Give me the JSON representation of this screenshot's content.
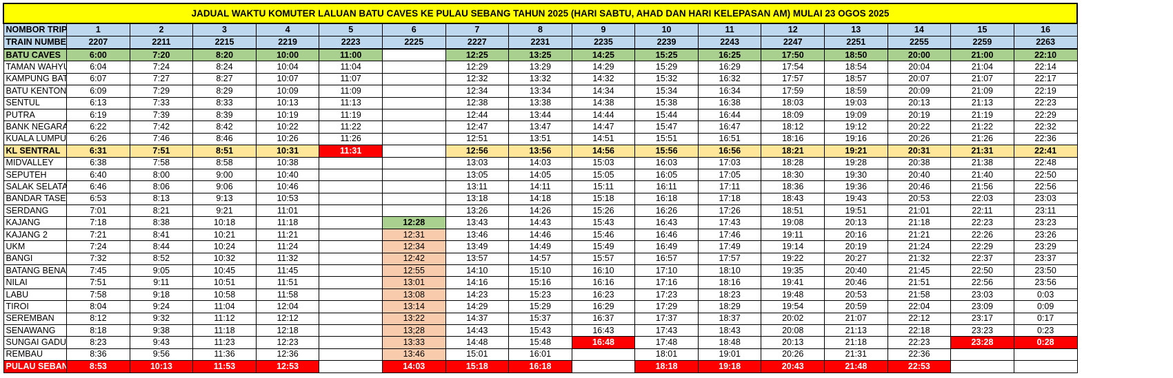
{
  "title": "JADUAL WAKTU KOMUTER LALUAN BATU CAVES KE PULAU SEBANG TAHUN 2025 (HARI SABTU, AHAD DAN HARI KELEPASAN AM) MULAI 23 OGOS 2025",
  "header": {
    "trip_label": "NOMBOR TRIP",
    "train_label": "TRAIN NUMBER",
    "trips": [
      "1",
      "2",
      "3",
      "4",
      "5",
      "6",
      "7",
      "8",
      "9",
      "10",
      "11",
      "12",
      "13",
      "14",
      "15",
      "16"
    ],
    "train_numbers": [
      "2207",
      "2211",
      "2215",
      "2219",
      "2223",
      "2225",
      "2227",
      "2231",
      "2235",
      "2239",
      "2243",
      "2247",
      "2251",
      "2255",
      "2259",
      "2263"
    ]
  },
  "colors": {
    "title": "#ffff00",
    "header": "#bdd7ee",
    "origin": "#a9d08e",
    "kl_sentral": "#ffe699",
    "terminus": "#ff0000",
    "short_trip": "#f8cbad"
  },
  "rows": [
    {
      "station": "BATU CAVES",
      "style": "green",
      "times": [
        "6:00",
        "7:20",
        "8:20",
        "10:00",
        "11:00",
        "",
        "12:25",
        "13:25",
        "14:25",
        "15:25",
        "16:25",
        "17:50",
        "18:50",
        "20:00",
        "21:00",
        "22:10"
      ]
    },
    {
      "station": "TAMAN WAHYU",
      "times": [
        "6:04",
        "7:24",
        "8:24",
        "10:04",
        "11:04",
        "",
        "12:29",
        "13:29",
        "14:29",
        "15:29",
        "16:29",
        "17:54",
        "18:54",
        "20:04",
        "21:04",
        "22:14"
      ]
    },
    {
      "station": "KAMPUNG BATU",
      "times": [
        "6:07",
        "7:27",
        "8:27",
        "10:07",
        "11:07",
        "",
        "12:32",
        "13:32",
        "14:32",
        "15:32",
        "16:32",
        "17:57",
        "18:57",
        "20:07",
        "21:07",
        "22:17"
      ]
    },
    {
      "station": "BATU KENTONMEN",
      "times": [
        "6:09",
        "7:29",
        "8:29",
        "10:09",
        "11:09",
        "",
        "12:34",
        "13:34",
        "14:34",
        "15:34",
        "16:34",
        "17:59",
        "18:59",
        "20:09",
        "21:09",
        "22:19"
      ]
    },
    {
      "station": "SENTUL",
      "times": [
        "6:13",
        "7:33",
        "8:33",
        "10:13",
        "11:13",
        "",
        "12:38",
        "13:38",
        "14:38",
        "15:38",
        "16:38",
        "18:03",
        "19:03",
        "20:13",
        "21:13",
        "22:23"
      ]
    },
    {
      "station": "PUTRA",
      "times": [
        "6:19",
        "7:39",
        "8:39",
        "10:19",
        "11:19",
        "",
        "12:44",
        "13:44",
        "14:44",
        "15:44",
        "16:44",
        "18:09",
        "19:09",
        "20:19",
        "21:19",
        "22:29"
      ]
    },
    {
      "station": "BANK NEGARA",
      "times": [
        "6:22",
        "7:42",
        "8:42",
        "10:22",
        "11:22",
        "",
        "12:47",
        "13:47",
        "14:47",
        "15:47",
        "16:47",
        "18:12",
        "19:12",
        "20:22",
        "21:22",
        "22:32"
      ]
    },
    {
      "station": "KUALA LUMPUR",
      "times": [
        "6:26",
        "7:46",
        "8:46",
        "10:26",
        "11:26",
        "",
        "12:51",
        "13:51",
        "14:51",
        "15:51",
        "16:51",
        "18:16",
        "19:16",
        "20:26",
        "21:26",
        "22:36"
      ]
    },
    {
      "station": "KL SENTRAL",
      "style": "yellow",
      "times": [
        "6:31",
        "7:51",
        "8:51",
        "10:31",
        "11:31",
        "",
        "12:56",
        "13:56",
        "14:56",
        "15:56",
        "16:56",
        "18:21",
        "19:21",
        "20:31",
        "21:31",
        "22:41"
      ]
    },
    {
      "station": "MIDVALLEY",
      "times": [
        "6:38",
        "7:58",
        "8:58",
        "10:38",
        "",
        "",
        "13:03",
        "14:03",
        "15:03",
        "16:03",
        "17:03",
        "18:28",
        "19:28",
        "20:38",
        "21:38",
        "22:48"
      ]
    },
    {
      "station": "SEPUTEH",
      "times": [
        "6:40",
        "8:00",
        "9:00",
        "10:40",
        "",
        "",
        "13:05",
        "14:05",
        "15:05",
        "16:05",
        "17:05",
        "18:30",
        "19:30",
        "20:40",
        "21:40",
        "22:50"
      ]
    },
    {
      "station": "SALAK SELATAN",
      "times": [
        "6:46",
        "8:06",
        "9:06",
        "10:46",
        "",
        "",
        "13:11",
        "14:11",
        "15:11",
        "16:11",
        "17:11",
        "18:36",
        "19:36",
        "20:46",
        "21:56",
        "22:56"
      ]
    },
    {
      "station": "BANDAR TASEK SELATAN",
      "times": [
        "6:53",
        "8:13",
        "9:13",
        "10:53",
        "",
        "",
        "13:18",
        "14:18",
        "15:18",
        "16:18",
        "17:18",
        "18:43",
        "19:43",
        "20:53",
        "22:03",
        "23:03"
      ]
    },
    {
      "station": "SERDANG",
      "times": [
        "7:01",
        "8:21",
        "9:21",
        "11:01",
        "",
        "",
        "13:26",
        "14:26",
        "15:26",
        "16:26",
        "17:26",
        "18:51",
        "19:51",
        "21:01",
        "22:11",
        "23:11"
      ]
    },
    {
      "station": "KAJANG",
      "times": [
        "7:18",
        "8:38",
        "10:18",
        "11:18",
        "",
        "12:28",
        "13:43",
        "14:43",
        "15:43",
        "16:43",
        "17:43",
        "19:08",
        "20:13",
        "21:18",
        "22:23",
        "23:23"
      ]
    },
    {
      "station": "KAJANG 2",
      "times": [
        "7:21",
        "8:41",
        "10:21",
        "11:21",
        "",
        "12:31",
        "13:46",
        "14:46",
        "15:46",
        "16:46",
        "17:46",
        "19:11",
        "20:16",
        "21:21",
        "22:26",
        "23:26"
      ]
    },
    {
      "station": "UKM",
      "times": [
        "7:24",
        "8:44",
        "10:24",
        "11:24",
        "",
        "12:34",
        "13:49",
        "14:49",
        "15:49",
        "16:49",
        "17:49",
        "19:14",
        "20:19",
        "21:24",
        "22:29",
        "23:29"
      ]
    },
    {
      "station": "BANGI",
      "times": [
        "7:32",
        "8:52",
        "10:32",
        "11:32",
        "",
        "12:42",
        "13:57",
        "14:57",
        "15:57",
        "16:57",
        "17:57",
        "19:22",
        "20:27",
        "21:32",
        "22:37",
        "23:37"
      ]
    },
    {
      "station": "BATANG BENAR",
      "times": [
        "7:45",
        "9:05",
        "10:45",
        "11:45",
        "",
        "12:55",
        "14:10",
        "15:10",
        "16:10",
        "17:10",
        "18:10",
        "19:35",
        "20:40",
        "21:45",
        "22:50",
        "23:50"
      ]
    },
    {
      "station": "NILAI",
      "times": [
        "7:51",
        "9:11",
        "10:51",
        "11:51",
        "",
        "13:01",
        "14:16",
        "15:16",
        "16:16",
        "17:16",
        "18:16",
        "19:41",
        "20:46",
        "21:51",
        "22:56",
        "23:56"
      ]
    },
    {
      "station": "LABU",
      "times": [
        "7:58",
        "9:18",
        "10:58",
        "11:58",
        "",
        "13:08",
        "14:23",
        "15:23",
        "16:23",
        "17:23",
        "18:23",
        "19:48",
        "20:53",
        "21:58",
        "23:03",
        "0:03"
      ]
    },
    {
      "station": "TIROI",
      "times": [
        "8:04",
        "9:24",
        "11:04",
        "12:04",
        "",
        "13:14",
        "14:29",
        "15:29",
        "16:29",
        "17:29",
        "18:29",
        "19:54",
        "20:59",
        "22:04",
        "23:09",
        "0:09"
      ]
    },
    {
      "station": "SEREMBAN",
      "times": [
        "8:12",
        "9:32",
        "11:12",
        "12:12",
        "",
        "13:22",
        "14:37",
        "15:37",
        "16:37",
        "17:37",
        "18:37",
        "20:02",
        "21:07",
        "22:12",
        "23:17",
        "0:17"
      ]
    },
    {
      "station": "SENAWANG",
      "times": [
        "8:18",
        "9:38",
        "11:18",
        "12:18",
        "",
        "13;28",
        "14:43",
        "15:43",
        "16:43",
        "17:43",
        "18:43",
        "20:08",
        "21:13",
        "22:18",
        "23:23",
        "0:23"
      ]
    },
    {
      "station": "SUNGAI GADUT",
      "times": [
        "8:23",
        "9:43",
        "11:23",
        "12:23",
        "",
        "13:33",
        "14:48",
        "15:48",
        "16:48",
        "17:48",
        "18:48",
        "20:13",
        "21:18",
        "22:23",
        "23:28",
        "0:28"
      ]
    },
    {
      "station": "REMBAU",
      "times": [
        "8:36",
        "9:56",
        "11:36",
        "12:36",
        "",
        "13:46",
        "15:01",
        "16:01",
        "",
        "18:01",
        "19:01",
        "20:26",
        "21:31",
        "22:36",
        "",
        ""
      ]
    },
    {
      "station": "PULAU SEBANG",
      "style": "red",
      "times": [
        "8:53",
        "10:13",
        "11:53",
        "12:53",
        "",
        "14:03",
        "15:18",
        "16:18",
        "",
        "18:18",
        "19:18",
        "20:43",
        "21:48",
        "22:53",
        "",
        ""
      ]
    }
  ],
  "cell_highlights": [
    {
      "row": 0,
      "trip": 6,
      "style": "white"
    },
    {
      "row": 8,
      "trip": 5,
      "style": "red"
    },
    {
      "row": 8,
      "trip": 6,
      "style": "white"
    },
    {
      "row": 14,
      "trip": 6,
      "style": "green"
    },
    {
      "row": 15,
      "trip": 6,
      "style": "peach"
    },
    {
      "row": 16,
      "trip": 6,
      "style": "peach"
    },
    {
      "row": 17,
      "trip": 6,
      "style": "peach"
    },
    {
      "row": 18,
      "trip": 6,
      "style": "peach"
    },
    {
      "row": 19,
      "trip": 6,
      "style": "peach"
    },
    {
      "row": 20,
      "trip": 6,
      "style": "peach"
    },
    {
      "row": 21,
      "trip": 6,
      "style": "peach"
    },
    {
      "row": 22,
      "trip": 6,
      "style": "peach"
    },
    {
      "row": 23,
      "trip": 6,
      "style": "peach"
    },
    {
      "row": 24,
      "trip": 6,
      "style": "peach"
    },
    {
      "row": 25,
      "trip": 6,
      "style": "peach"
    },
    {
      "row": 26,
      "trip": 6,
      "style": "red"
    },
    {
      "row": 24,
      "trip": 9,
      "style": "red"
    },
    {
      "row": 24,
      "trip": 15,
      "style": "red"
    },
    {
      "row": 24,
      "trip": 16,
      "style": "red"
    },
    {
      "row": 26,
      "trip": 5,
      "style": "white"
    },
    {
      "row": 26,
      "trip": 9,
      "style": "white"
    },
    {
      "row": 26,
      "trip": 15,
      "style": "white"
    },
    {
      "row": 26,
      "trip": 16,
      "style": "white"
    }
  ]
}
